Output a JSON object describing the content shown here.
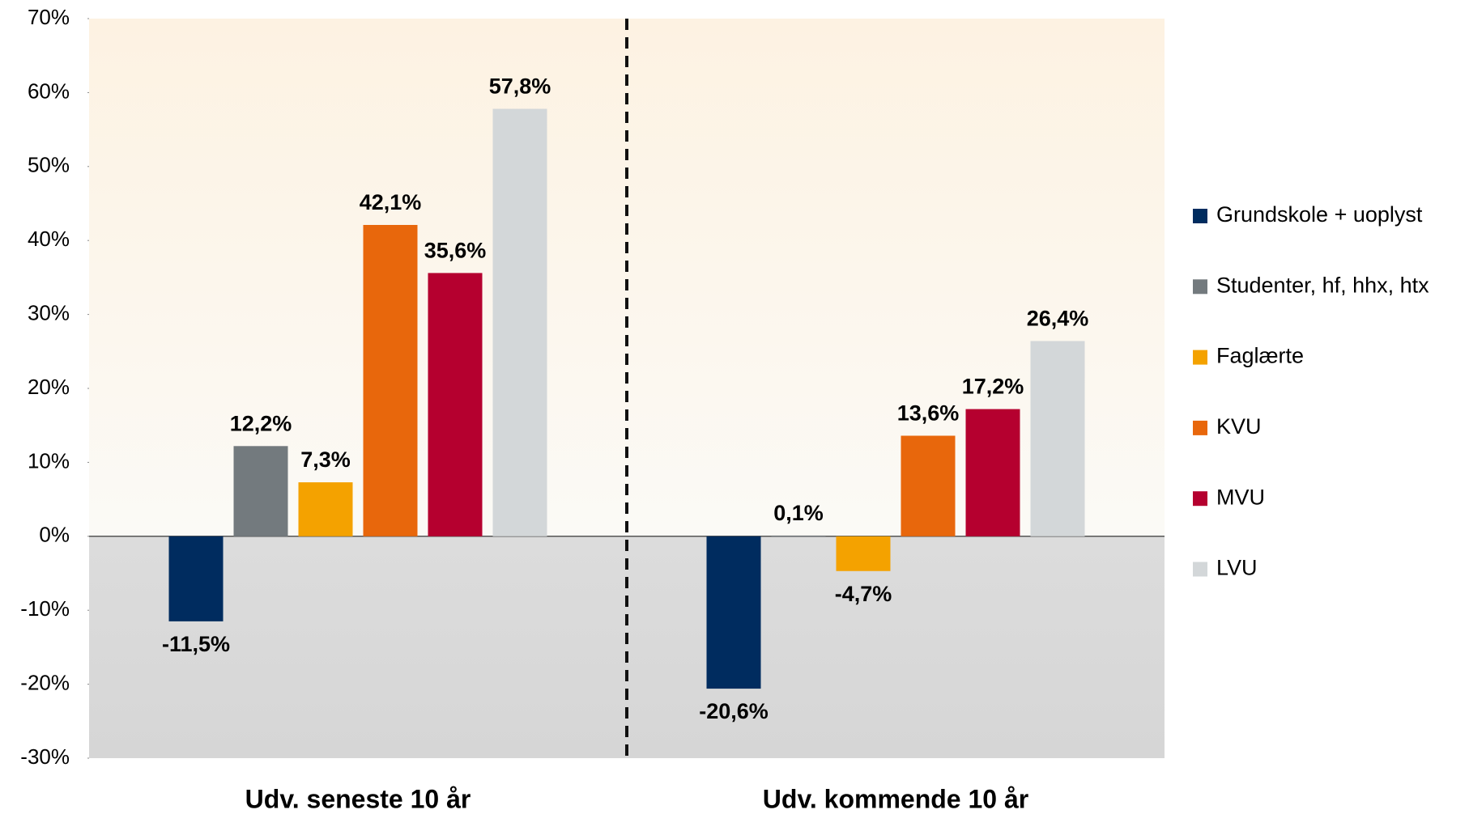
{
  "chart_data": {
    "type": "bar",
    "categories": [
      "Udv. seneste 10 år",
      "Udv. kommende 10 år"
    ],
    "series": [
      {
        "name": "Grundskole + uoplyst",
        "color": "#002c5f",
        "values": [
          -11.5,
          -20.6
        ],
        "value_labels": [
          "-11,5%",
          "-20,6%"
        ]
      },
      {
        "name": "Studenter, hf, hhx, htx",
        "color": "#737a7e",
        "values": [
          12.2,
          0.1
        ],
        "value_labels": [
          "12,2%",
          "0,1%"
        ]
      },
      {
        "name": "Faglærte",
        "color": "#f4a200",
        "values": [
          7.3,
          -4.7
        ],
        "value_labels": [
          "7,3%",
          "-4,7%"
        ]
      },
      {
        "name": "KVU",
        "color": "#e8670c",
        "values": [
          42.1,
          13.6
        ],
        "value_labels": [
          "42,1%",
          "13,6%"
        ]
      },
      {
        "name": "MVU",
        "color": "#b5002f",
        "values": [
          35.6,
          17.2
        ],
        "value_labels": [
          "35,6%",
          "17,2%"
        ]
      },
      {
        "name": "LVU",
        "color": "#d3d7d9",
        "values": [
          57.8,
          26.4
        ],
        "value_labels": [
          "57,8%",
          "26,4%"
        ]
      }
    ],
    "ylim": [
      -30,
      70
    ],
    "yticks": [
      {
        "value": -30,
        "label": "-30%"
      },
      {
        "value": -20,
        "label": "-20%"
      },
      {
        "value": -10,
        "label": "-10%"
      },
      {
        "value": 0,
        "label": "0%"
      },
      {
        "value": 10,
        "label": "10%"
      },
      {
        "value": 20,
        "label": "20%"
      },
      {
        "value": 30,
        "label": "30%"
      },
      {
        "value": 40,
        "label": "40%"
      },
      {
        "value": 50,
        "label": "50%"
      },
      {
        "value": 60,
        "label": "60%"
      },
      {
        "value": 70,
        "label": "70%"
      }
    ],
    "legend": "right"
  }
}
